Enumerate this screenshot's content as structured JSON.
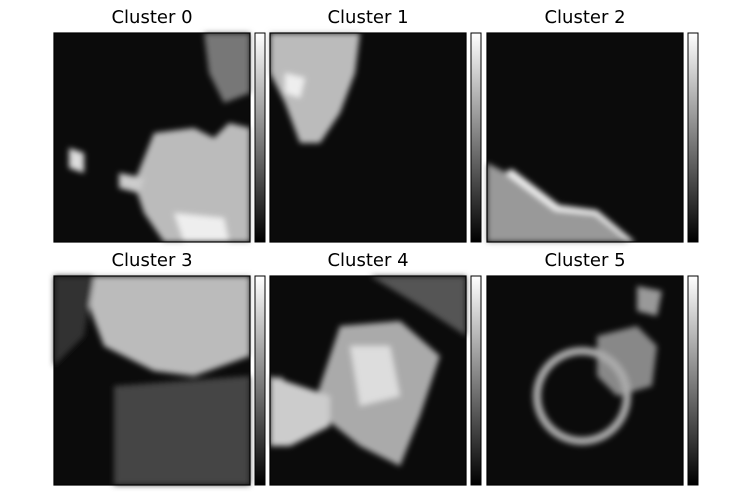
{
  "chart_data": [
    {
      "type": "image",
      "title": "Cluster 0"
    },
    {
      "type": "image",
      "title": "Cluster 1"
    },
    {
      "type": "image",
      "title": "Cluster 2"
    },
    {
      "type": "image",
      "title": "Cluster 3"
    },
    {
      "type": "image",
      "title": "Cluster 4"
    },
    {
      "type": "image",
      "title": "Cluster 5"
    }
  ]
}
